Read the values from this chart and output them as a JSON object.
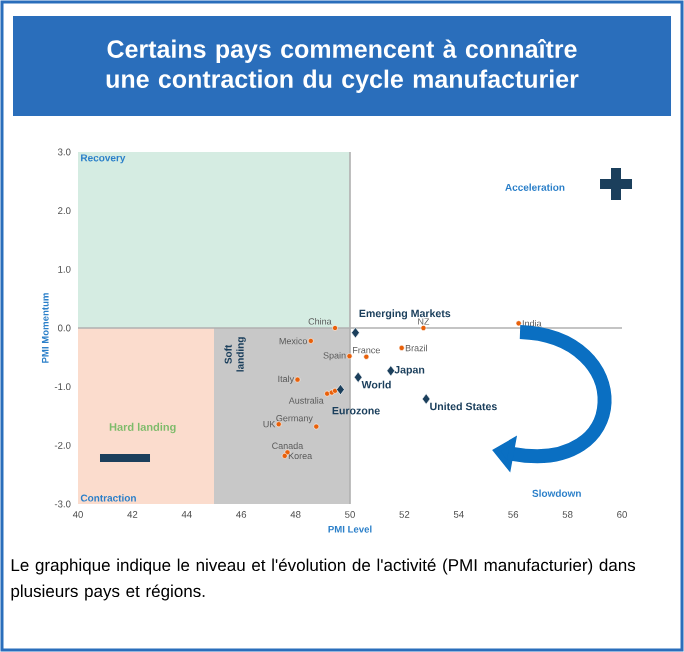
{
  "chart_data": {
    "type": "scatter",
    "title": "Certains pays commencent à connaître une contraction du cycle manufacturier",
    "xlabel": "PMI Level",
    "ylabel": "PMI Momentum",
    "xlim": [
      40,
      60
    ],
    "ylim": [
      -3,
      3
    ],
    "xticks": [
      40,
      42,
      44,
      46,
      48,
      50,
      52,
      54,
      56,
      58,
      60
    ],
    "yticks": [
      {
        "value": -3,
        "label": "-3.0"
      },
      {
        "value": -2,
        "label": "-2.0"
      },
      {
        "value": -1,
        "label": "-1.0"
      },
      {
        "value": 0,
        "label": "0.0"
      },
      {
        "value": 1,
        "label": "1.0"
      },
      {
        "value": 2,
        "label": "2.0"
      },
      {
        "value": 3,
        "label": "3.0"
      }
    ],
    "series": [
      {
        "color": "#e8600a",
        "marker": "circle",
        "x": [
          49.45,
          48.56,
          49.98,
          48.07,
          49.16,
          49.33,
          49.45,
          48.76,
          47.38,
          47.7,
          47.6,
          50.6,
          52.7,
          56.2,
          51.9
        ],
        "values": [
          0.0,
          -0.22,
          -0.48,
          -0.88,
          -1.12,
          -1.1,
          -1.07,
          -1.68,
          -1.64,
          -2.12,
          -2.18,
          -0.49,
          0.0,
          0.08,
          -0.34
        ]
      },
      {
        "color": "#1b3f5c",
        "marker": "diamond",
        "x": [
          50.2,
          50.3,
          49.65,
          51.5,
          52.8
        ],
        "values": [
          -0.08,
          -0.84,
          -1.05,
          -0.73,
          -1.21
        ]
      }
    ],
    "ref_lines": [
      {
        "axis": "x",
        "value": 50,
        "color": "#b0b0b0"
      },
      {
        "axis": "y",
        "value": 0,
        "color": "#b0b0b0"
      }
    ],
    "bands": [
      {
        "axis": "y",
        "from": 0,
        "to": 3,
        "label": "Recovery",
        "color": "#d5ece2"
      },
      {
        "axis": "y",
        "from": -3,
        "to": 0,
        "label": "Hard landing",
        "color": "#fbdccd"
      },
      {
        "axis": "x",
        "from": 45,
        "to": 50,
        "label": "Soft landing",
        "color": "#c8c8c8"
      }
    ],
    "annotations": [
      "Acceleration",
      "Slowdown",
      "Contraction",
      "Le graphique indique le niveau et l'évolution de l'activité (PMI manufacturier) dans plusieurs pays et régions.",
      {
        "text": "China",
        "x": 49.45,
        "y": 0.0
      },
      {
        "text": "Mexico",
        "x": 48.56,
        "y": -0.22
      },
      {
        "text": "Spain",
        "x": 49.98,
        "y": -0.48
      },
      {
        "text": "Italy",
        "x": 48.07,
        "y": -0.88
      },
      {
        "text": "Australia",
        "x": 49.16,
        "y": -1.12
      },
      {
        "text": "Germany",
        "x": 48.76,
        "y": -1.68
      },
      {
        "text": "UK",
        "x": 47.38,
        "y": -1.64
      },
      {
        "text": "Canada",
        "x": 47.7,
        "y": -2.12
      },
      {
        "text": "Korea",
        "x": 47.6,
        "y": -2.18
      },
      {
        "text": "France",
        "x": 50.6,
        "y": -0.49
      },
      {
        "text": "NZ",
        "x": 52.7,
        "y": 0.0
      },
      {
        "text": "India",
        "x": 56.2,
        "y": 0.08
      },
      {
        "text": "Brazil",
        "x": 51.9,
        "y": -0.34
      },
      {
        "text": "Emerging Markets",
        "x": 50.2,
        "y": -0.08
      },
      {
        "text": "World",
        "x": 50.3,
        "y": -0.84
      },
      {
        "text": "Eurozone",
        "x": 49.65,
        "y": -1.05
      },
      {
        "text": "Japan",
        "x": 51.5,
        "y": -0.73
      },
      {
        "text": "United States",
        "x": 52.8,
        "y": -1.21
      }
    ]
  }
}
